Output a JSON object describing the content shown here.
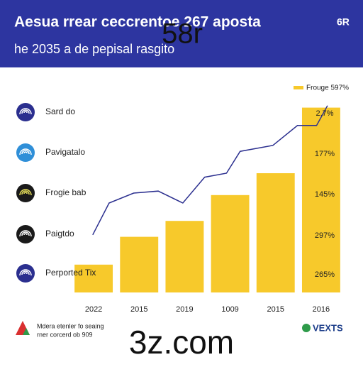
{
  "header": {
    "title": "Aesua rrear ceccrentoe 267 aposta",
    "overlay": "58r",
    "subtitle": "he 2035 a de pepisal rasgito",
    "badge": "6R"
  },
  "list": [
    {
      "label": "Sard do",
      "icon_color": "#2b2f8f"
    },
    {
      "label": "Pavigatalo",
      "icon_color": "#2f8fd8"
    },
    {
      "label": "Frogie bab",
      "icon_color": "#1a1a1a"
    },
    {
      "label": "Paigtdo",
      "icon_color": "#1a1a1a"
    },
    {
      "label": "Perported Tix",
      "icon_color": "#2b2f8f"
    }
  ],
  "side_labels": [
    "2.7%",
    "177%",
    "145%",
    "297%",
    "265%"
  ],
  "chart_data": {
    "type": "bar",
    "legend": "Frouge 597%",
    "categories": [
      "2022",
      "2015",
      "2019",
      "1009",
      "2015",
      "2016"
    ],
    "values": [
      14,
      28,
      36,
      49,
      60,
      93
    ],
    "color": "#f7c92b",
    "ylim": [
      0,
      100
    ],
    "line": {
      "color": "#2b2f8f",
      "xlim": [
        0,
        100
      ],
      "x": [
        8,
        14,
        23,
        32,
        41,
        49,
        57,
        62,
        74,
        83,
        90,
        94
      ],
      "values": [
        29,
        45,
        50,
        51,
        45,
        58,
        60,
        71,
        74,
        84,
        84,
        94
      ]
    }
  },
  "footer": {
    "note": [
      "Mdera etenler fo seaing",
      "rner corcerd ob 909"
    ],
    "brand": "3z.com",
    "logo": "VEXTS"
  }
}
